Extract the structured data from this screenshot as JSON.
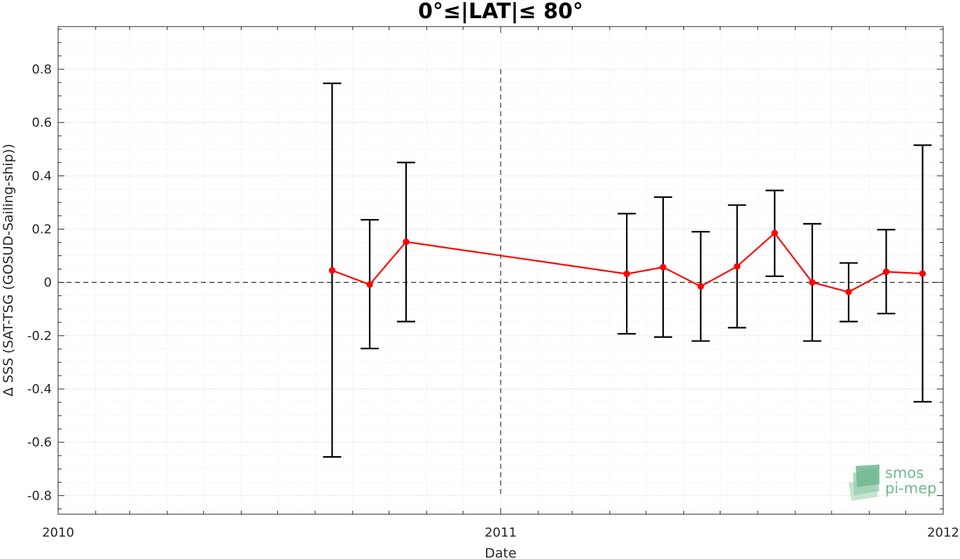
{
  "chart_data": {
    "type": "line",
    "title": "0°≤|LAT|≤ 80°",
    "xlabel": "Date",
    "ylabel": "Δ SSS (SAT-TSG (GOSUD-Sailing-ship))",
    "x_ticks": [
      "2010",
      "2011",
      "2012"
    ],
    "y_ticks": [
      "0.8",
      "0.6",
      "0.4",
      "0.2",
      "0",
      "-0.2",
      "-0.4",
      "-0.6",
      "-0.8"
    ],
    "xlim": [
      "2010-01-01",
      "2012-01-01"
    ],
    "ylim": [
      -0.87,
      0.96
    ],
    "grid": true,
    "minor_grid": true,
    "series": [
      {
        "color": "#ff0000",
        "error_bar_color": "#000000",
        "x": [
          "2010-08-15",
          "2010-09-15",
          "2010-10-15",
          "2011-04-15",
          "2011-05-15",
          "2011-06-15",
          "2011-07-15",
          "2011-08-15",
          "2011-09-15",
          "2011-10-15",
          "2011-11-15",
          "2011-12-15"
        ],
        "y": [
          0.045,
          -0.008,
          0.152,
          0.032,
          0.057,
          -0.015,
          0.06,
          0.185,
          0.0,
          -0.036,
          0.04,
          0.033
        ],
        "lower": [
          -0.655,
          -0.248,
          -0.147,
          -0.193,
          -0.205,
          -0.22,
          -0.17,
          0.023,
          -0.22,
          -0.147,
          -0.117,
          -0.448
        ],
        "upper": [
          0.747,
          0.235,
          0.45,
          0.258,
          0.32,
          0.19,
          0.29,
          0.345,
          0.22,
          0.073,
          0.198,
          0.515
        ]
      }
    ],
    "reference_lines": {
      "horizontal_y": 0,
      "vertical_x": "2011-01-01",
      "vertical_y_range": [
        -0.8,
        0.8
      ]
    }
  },
  "logo": {
    "line1": "smos",
    "line2": "pi-mep",
    "color": "#6fb98f"
  }
}
